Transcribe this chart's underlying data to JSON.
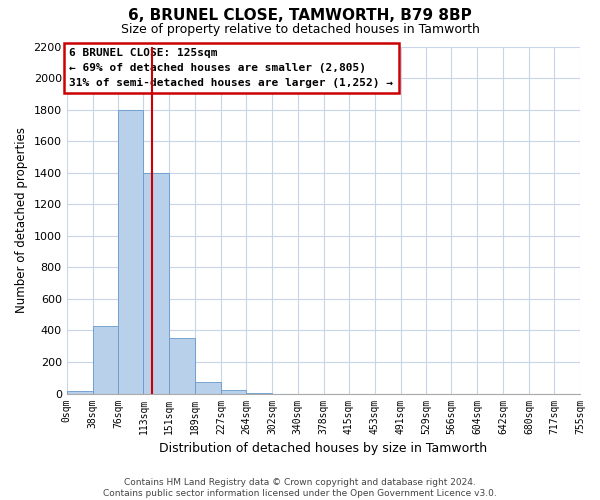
{
  "title": "6, BRUNEL CLOSE, TAMWORTH, B79 8BP",
  "subtitle": "Size of property relative to detached houses in Tamworth",
  "xlabel": "Distribution of detached houses by size in Tamworth",
  "ylabel": "Number of detached properties",
  "bin_edges": [
    0,
    38,
    76,
    113,
    151,
    189,
    227,
    264,
    302,
    340,
    378,
    415,
    453,
    491,
    529,
    566,
    604,
    642,
    680,
    717,
    755
  ],
  "bin_labels": [
    "0sqm",
    "38sqm",
    "76sqm",
    "113sqm",
    "151sqm",
    "189sqm",
    "227sqm",
    "264sqm",
    "302sqm",
    "340sqm",
    "378sqm",
    "415sqm",
    "453sqm",
    "491sqm",
    "529sqm",
    "566sqm",
    "604sqm",
    "642sqm",
    "680sqm",
    "717sqm",
    "755sqm"
  ],
  "bar_heights": [
    15,
    430,
    1800,
    1400,
    350,
    75,
    25,
    5,
    0,
    0,
    0,
    0,
    0,
    0,
    0,
    0,
    0,
    0,
    0,
    0
  ],
  "bar_color": "#b8d0ea",
  "bar_edge_color": "#6699cc",
  "vline_x": 125,
  "vline_color": "#cc0000",
  "ylim": [
    0,
    2200
  ],
  "yticks": [
    0,
    200,
    400,
    600,
    800,
    1000,
    1200,
    1400,
    1600,
    1800,
    2000,
    2200
  ],
  "annotation_title": "6 BRUNEL CLOSE: 125sqm",
  "annotation_line1": "← 69% of detached houses are smaller (2,805)",
  "annotation_line2": "31% of semi-detached houses are larger (1,252) →",
  "footer_line1": "Contains HM Land Registry data © Crown copyright and database right 2024.",
  "footer_line2": "Contains public sector information licensed under the Open Government Licence v3.0.",
  "background_color": "#ffffff",
  "grid_color": "#c8d4e8"
}
